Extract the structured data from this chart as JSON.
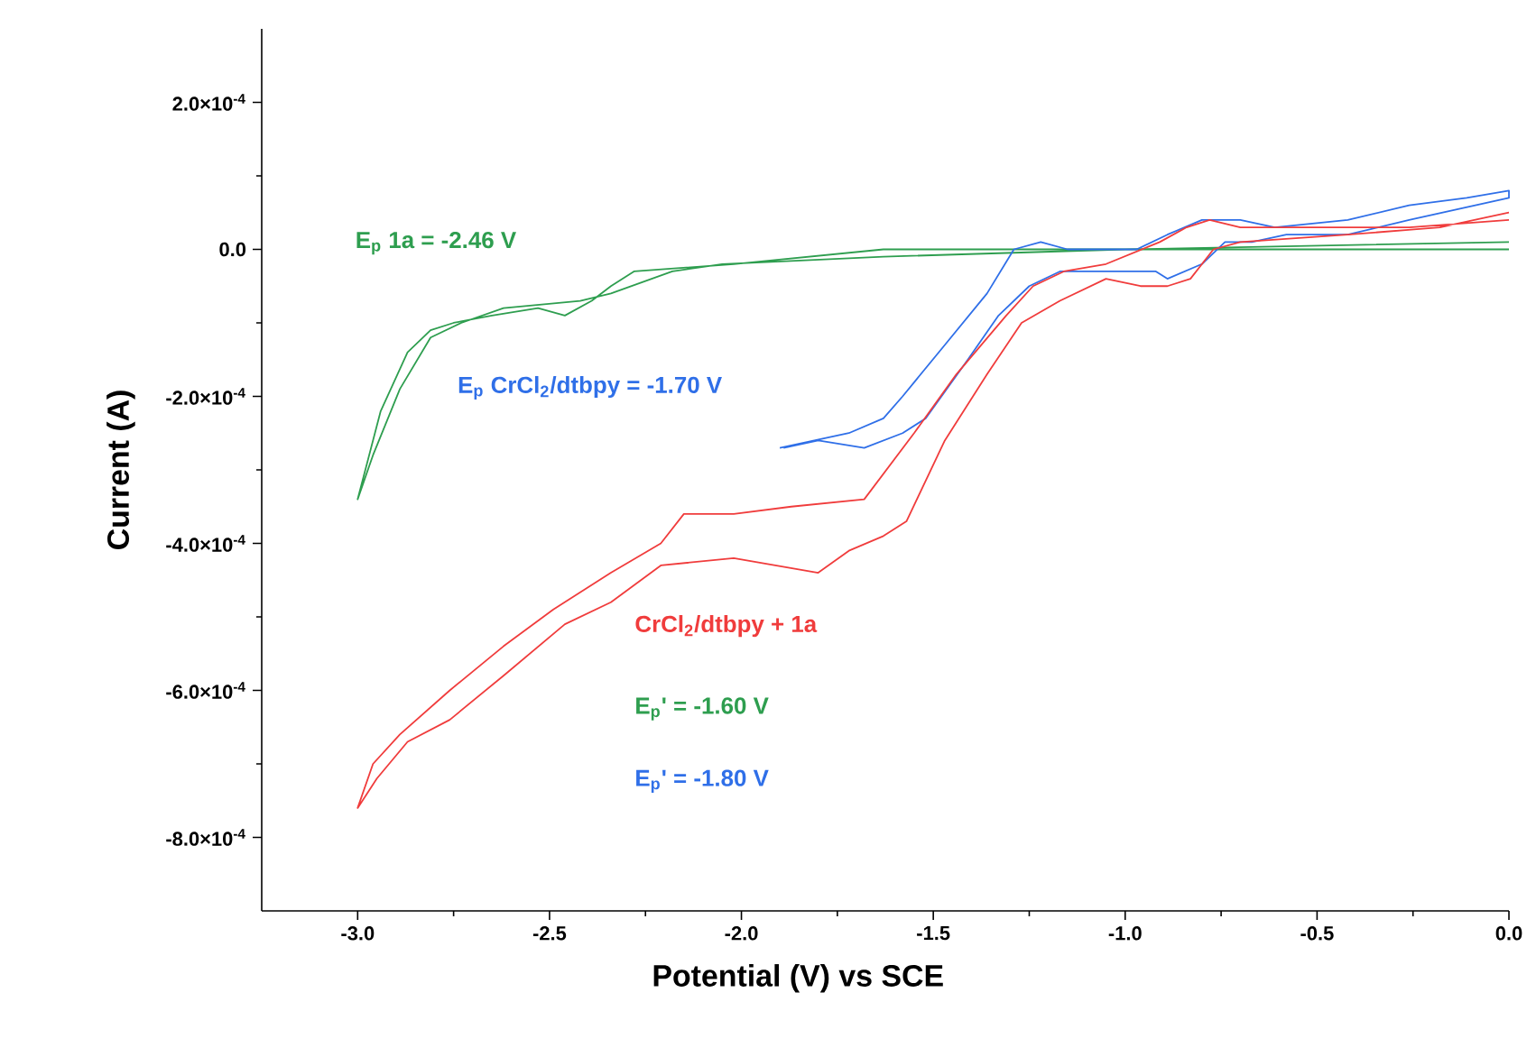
{
  "chart_data": {
    "type": "line",
    "xlabel": "Potential (V) vs SCE",
    "ylabel": "Current (A)",
    "xlim": [
      -3.25,
      0
    ],
    "ylim": [
      -0.0009,
      0.0003
    ],
    "xticks": [
      {
        "value": -3.0,
        "label": "-3.0"
      },
      {
        "value": -2.5,
        "label": "-2.5"
      },
      {
        "value": -2.0,
        "label": "-2.0"
      },
      {
        "value": -1.5,
        "label": "-1.5"
      },
      {
        "value": -1.0,
        "label": "-1.0"
      },
      {
        "value": -0.5,
        "label": "-0.5"
      },
      {
        "value": 0.0,
        "label": "0.0"
      }
    ],
    "yticks": [
      {
        "value": 0.0002,
        "label": "2.0×10$^{-4}$"
      },
      {
        "value": 0.0,
        "label": "0.0"
      },
      {
        "value": -0.0002,
        "label": "-2.0×10$^{-4}$"
      },
      {
        "value": -0.0004,
        "label": "-4.0×10$^{-4}$"
      },
      {
        "value": -0.0006,
        "label": "-6.0×10$^{-4}$"
      },
      {
        "value": -0.0008,
        "label": "-8.0×10$^{-4}$"
      }
    ],
    "series": [
      {
        "name": "E$_{p}$ 1a = -2.46 V",
        "color": "#2e9e4f",
        "x": [
          0.0,
          -1.0,
          -1.63,
          -2.02,
          -2.28,
          -2.34,
          -2.39,
          -2.46,
          -2.53,
          -2.65,
          -2.75,
          -2.81,
          -2.87,
          -2.94,
          -3.0,
          -2.96,
          -2.89,
          -2.81,
          -2.73,
          -2.62,
          -2.42,
          -2.34,
          -2.18,
          -2.05,
          -1.63,
          -1.0,
          0.0
        ],
        "values": [
          0.0,
          0.0,
          0.0,
          -2e-05,
          -3e-05,
          -5e-05,
          -7e-05,
          -9e-05,
          -8e-05,
          -9e-05,
          -0.0001,
          -0.00011,
          -0.00014,
          -0.00022,
          -0.00034,
          -0.00028,
          -0.00019,
          -0.00012,
          -0.0001,
          -8e-05,
          -7e-05,
          -6e-05,
          -3e-05,
          -2e-05,
          -1e-05,
          0.0,
          1e-05
        ]
      },
      {
        "name": "E$_{p}$ CrCl$_{2}$/dtbpy = -1.70 V",
        "color": "#2f6fe8",
        "x": [
          -1.9,
          -1.72,
          -1.63,
          -1.58,
          -1.47,
          -1.36,
          -1.29,
          -1.22,
          -1.15,
          -0.97,
          -0.89,
          -0.8,
          -0.7,
          -0.61,
          -0.42,
          -0.26,
          -0.11,
          0.0,
          0.0,
          -0.26,
          -0.42,
          -0.58,
          -0.67,
          -0.74,
          -0.8,
          -0.89,
          -0.92,
          -1.05,
          -1.17,
          -1.25,
          -1.33,
          -1.41,
          -1.52,
          -1.58,
          -1.68,
          -1.8,
          -1.89
        ],
        "values": [
          -0.00027,
          -0.00025,
          -0.00023,
          -0.0002,
          -0.00013,
          -6e-05,
          0.0,
          1e-05,
          0.0,
          0.0,
          2e-05,
          4e-05,
          4e-05,
          3e-05,
          4e-05,
          6e-05,
          7e-05,
          8e-05,
          7e-05,
          4e-05,
          2e-05,
          2e-05,
          1e-05,
          1e-05,
          -2e-05,
          -4e-05,
          -3e-05,
          -3e-05,
          -3e-05,
          -5e-05,
          -9e-05,
          -0.00015,
          -0.00023,
          -0.00025,
          -0.00027,
          -0.00026,
          -0.00027
        ]
      },
      {
        "name": "CrCl$_{2}$/dtbpy + 1a",
        "color": "#f03c3c",
        "x": [
          0.0,
          -0.26,
          -0.58,
          -0.7,
          -0.78,
          -0.84,
          -0.91,
          -1.05,
          -1.16,
          -1.24,
          -1.31,
          -1.44,
          -1.55,
          -1.68,
          -1.87,
          -2.02,
          -2.15,
          -2.21,
          -2.34,
          -2.49,
          -2.62,
          -2.76,
          -2.89,
          -2.96,
          -3.0,
          -2.95,
          -2.87,
          -2.76,
          -2.62,
          -2.46,
          -2.34,
          -2.21,
          -2.02,
          -1.8,
          -1.72,
          -1.63,
          -1.57,
          -1.47,
          -1.36,
          -1.27,
          -1.17,
          -1.05,
          -0.96,
          -0.89,
          -0.83,
          -0.77,
          -0.7,
          -0.42,
          -0.18,
          0.0
        ],
        "values": [
          4e-05,
          3e-05,
          3e-05,
          3e-05,
          4e-05,
          3e-05,
          1e-05,
          -2e-05,
          -3e-05,
          -5e-05,
          -9e-05,
          -0.00017,
          -0.00025,
          -0.00034,
          -0.00035,
          -0.00036,
          -0.00036,
          -0.0004,
          -0.00044,
          -0.00049,
          -0.00054,
          -0.0006,
          -0.00066,
          -0.0007,
          -0.00076,
          -0.00072,
          -0.00067,
          -0.00064,
          -0.00058,
          -0.00051,
          -0.00048,
          -0.00043,
          -0.00042,
          -0.00044,
          -0.00041,
          -0.00039,
          -0.00037,
          -0.00026,
          -0.00017,
          -0.0001,
          -7e-05,
          -4e-05,
          -5e-05,
          -5e-05,
          -4e-05,
          0.0,
          1e-05,
          2e-05,
          3e-05,
          5e-05
        ]
      }
    ],
    "annotations": [
      "E$_{p}$' = -1.60 V",
      "E$_{p}$' = -1.80 V"
    ]
  }
}
